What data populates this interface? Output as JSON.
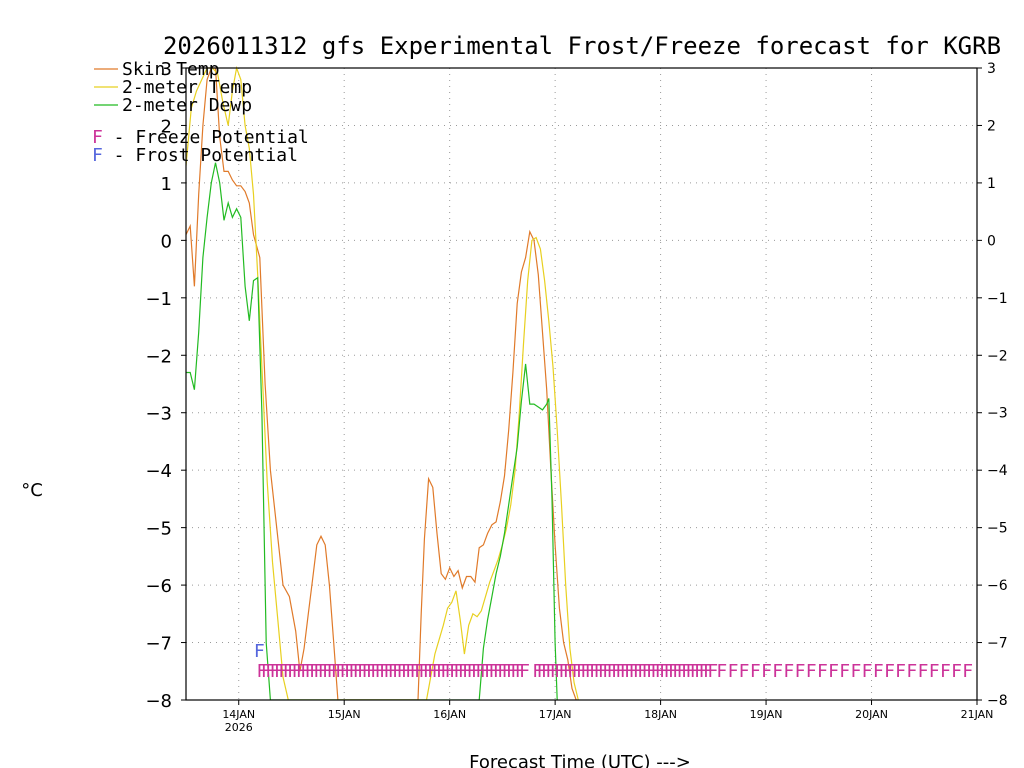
{
  "colors": {
    "skin": "#e07a2a",
    "temp2m": "#e8d020",
    "dewp": "#22bb22",
    "freeze": "#cc3399",
    "frost": "#5566dd",
    "grid": "#9a9a9a"
  },
  "chart_data": {
    "type": "line",
    "title": "2026011312 gfs Experimental Frost/Freeze forecast for KGRB",
    "xlabel": "Forecast Time (UTC) --->",
    "ylabel": "°C",
    "ylim": [
      -8,
      3
    ],
    "xlim": [
      13.5,
      21.0
    ],
    "yticks": [
      -8,
      -7,
      -6,
      -5,
      -4,
      -3,
      -2,
      -1,
      0,
      1,
      2,
      3
    ],
    "xticks": [
      {
        "x": 14,
        "label": "14JAN",
        "sublabel": "2026"
      },
      {
        "x": 15,
        "label": "15JAN"
      },
      {
        "x": 16,
        "label": "16JAN"
      },
      {
        "x": 17,
        "label": "17JAN"
      },
      {
        "x": 18,
        "label": "18JAN"
      },
      {
        "x": 19,
        "label": "19JAN"
      },
      {
        "x": 20,
        "label": "20JAN"
      },
      {
        "x": 21,
        "label": "21JAN"
      }
    ],
    "grid": true,
    "legend_position": "top-left",
    "series": [
      {
        "name": "Skin Temp",
        "color_key": "skin",
        "x": [
          13.5,
          13.54,
          13.58,
          13.62,
          13.66,
          13.7,
          13.74,
          13.78,
          13.82,
          13.86,
          13.9,
          13.94,
          13.98,
          14.02,
          14.06,
          14.1,
          14.14,
          14.2,
          14.25,
          14.3,
          14.36,
          14.42,
          14.48,
          14.54,
          14.58,
          14.62,
          14.66,
          14.7,
          14.74,
          14.78,
          14.82,
          14.86,
          14.9,
          14.94,
          15.7,
          15.73,
          15.76,
          15.8,
          15.84,
          15.88,
          15.92,
          15.96,
          16.0,
          16.04,
          16.08,
          16.12,
          16.16,
          16.2,
          16.24,
          16.28,
          16.32,
          16.36,
          16.4,
          16.44,
          16.48,
          16.52,
          16.56,
          16.6,
          16.64,
          16.68,
          16.72,
          16.76,
          16.8,
          16.84,
          16.88,
          16.92,
          16.96,
          17.0,
          17.04,
          17.08,
          17.12,
          17.16,
          17.2
        ],
        "y": [
          0.1,
          0.25,
          -0.8,
          0.8,
          2.0,
          2.8,
          3.0,
          3.0,
          1.8,
          1.2,
          1.2,
          1.05,
          0.95,
          0.95,
          0.85,
          0.65,
          0.1,
          -0.3,
          -2.5,
          -4.0,
          -5.0,
          -6.0,
          -6.2,
          -6.8,
          -7.5,
          -7.1,
          -6.5,
          -5.9,
          -5.3,
          -5.15,
          -5.3,
          -6.0,
          -7.0,
          -8.0,
          -8.0,
          -6.5,
          -5.2,
          -4.15,
          -4.3,
          -5.1,
          -5.8,
          -5.9,
          -5.7,
          -5.85,
          -5.75,
          -6.05,
          -5.85,
          -5.85,
          -5.95,
          -5.35,
          -5.3,
          -5.1,
          -4.95,
          -4.9,
          -4.55,
          -4.1,
          -3.3,
          -2.3,
          -1.1,
          -0.55,
          -0.3,
          0.15,
          0.0,
          -0.6,
          -1.6,
          -2.6,
          -4.0,
          -5.3,
          -6.4,
          -7.0,
          -7.3,
          -7.8,
          -8.0
        ]
      },
      {
        "name": "2-meter Temp",
        "color_key": "temp2m",
        "x": [
          13.5,
          13.55,
          13.6,
          13.65,
          13.7,
          13.75,
          13.8,
          13.85,
          13.9,
          13.94,
          13.98,
          14.02,
          14.06,
          14.1,
          14.14,
          14.18,
          14.22,
          14.27,
          14.32,
          14.37,
          14.42,
          14.47,
          15.78,
          15.82,
          15.86,
          15.9,
          15.94,
          15.98,
          16.02,
          16.06,
          16.1,
          16.14,
          16.18,
          16.22,
          16.26,
          16.3,
          16.34,
          16.38,
          16.42,
          16.46,
          16.5,
          16.54,
          16.58,
          16.62,
          16.66,
          16.7,
          16.74,
          16.78,
          16.82,
          16.86,
          16.9,
          16.94,
          16.98,
          17.02,
          17.06,
          17.1,
          17.14,
          17.18,
          17.22
        ],
        "y": [
          1.3,
          2.3,
          2.6,
          2.8,
          3.0,
          3.0,
          2.9,
          2.4,
          2.0,
          2.6,
          3.0,
          2.8,
          2.0,
          1.6,
          0.8,
          -0.6,
          -2.2,
          -4.2,
          -5.6,
          -6.6,
          -7.6,
          -8.0,
          -8.0,
          -7.6,
          -7.2,
          -6.95,
          -6.7,
          -6.4,
          -6.3,
          -6.1,
          -6.6,
          -7.2,
          -6.7,
          -6.5,
          -6.55,
          -6.45,
          -6.2,
          -5.95,
          -5.75,
          -5.55,
          -5.3,
          -5.0,
          -4.6,
          -4.0,
          -3.0,
          -1.8,
          -0.7,
          0.0,
          0.05,
          -0.15,
          -0.7,
          -1.4,
          -2.2,
          -3.3,
          -4.6,
          -6.0,
          -7.1,
          -7.7,
          -8.0
        ]
      },
      {
        "name": "2-meter Dewp",
        "color_key": "dewp",
        "x": [
          13.5,
          13.54,
          13.58,
          13.62,
          13.66,
          13.7,
          13.74,
          13.78,
          13.82,
          13.86,
          13.9,
          13.94,
          13.98,
          14.02,
          14.06,
          14.1,
          14.14,
          14.18,
          14.22,
          14.26,
          14.3,
          16.28,
          16.32,
          16.36,
          16.4,
          16.44,
          16.48,
          16.52,
          16.56,
          16.6,
          16.64,
          16.68,
          16.72,
          16.76,
          16.8,
          16.84,
          16.88,
          16.92,
          16.94,
          16.97,
          17.0,
          17.02
        ],
        "y": [
          -2.3,
          -2.3,
          -2.6,
          -1.6,
          -0.3,
          0.4,
          1.0,
          1.35,
          1.0,
          0.35,
          0.65,
          0.4,
          0.55,
          0.4,
          -0.8,
          -1.4,
          -0.7,
          -0.65,
          -3.0,
          -7.0,
          -8.0,
          -8.0,
          -7.1,
          -6.6,
          -6.2,
          -5.8,
          -5.5,
          -5.1,
          -4.6,
          -4.1,
          -3.6,
          -2.8,
          -2.15,
          -2.85,
          -2.85,
          -2.9,
          -2.95,
          -2.85,
          -2.75,
          -4.5,
          -7.0,
          -8.0
        ]
      }
    ],
    "frost_marker": {
      "x": 14.2,
      "y": -7.13,
      "glyph": "F"
    },
    "freeze_markers": {
      "glyph": "F",
      "y": -7.48,
      "dense_start": 14.22,
      "dense_end": 18.5,
      "dense_step": 0.0415,
      "gap_start": 16.72,
      "gap_end": 16.83,
      "sparse_start": 18.58,
      "sparse_end": 21.0,
      "sparse_step": 0.106
    }
  },
  "legend": [
    {
      "label": "Skin Temp",
      "color_key": "skin"
    },
    {
      "label": "2-meter Temp",
      "color_key": "temp2m"
    },
    {
      "label": "2-meter Dewp",
      "color_key": "dewp"
    }
  ],
  "potential_legend": [
    {
      "glyph": "F",
      "label": " - Freeze Potential",
      "color_key": "freeze"
    },
    {
      "glyph": "F",
      "label": " - Frost Potential",
      "color_key": "frost"
    }
  ]
}
